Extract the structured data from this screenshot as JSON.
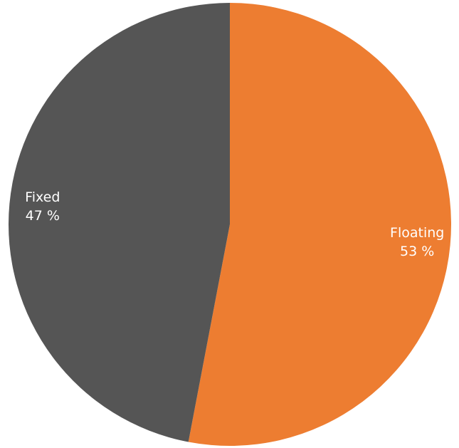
{
  "chart_data": {
    "type": "pie",
    "title": "",
    "slices": [
      {
        "label": "Floating",
        "value": 53,
        "value_label": "53 %",
        "color": "#ED7D31"
      },
      {
        "label": "Fixed",
        "value": 47,
        "value_label": "47 %",
        "color": "#555555"
      }
    ],
    "start_angle_deg": 0,
    "direction": "clockwise",
    "legend": "none",
    "data_labels": "inside"
  }
}
